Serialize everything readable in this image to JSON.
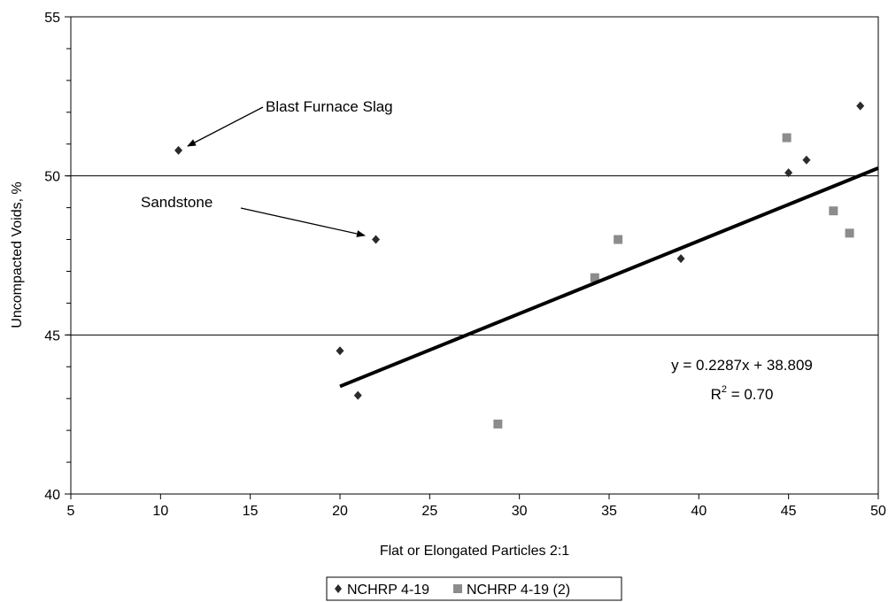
{
  "chart_data": {
    "type": "scatter",
    "xlabel": "Flat or Elongated Particles 2:1",
    "ylabel": "Uncompacted Voids, %",
    "xlim": [
      5,
      50
    ],
    "ylim": [
      40,
      55
    ],
    "x_ticks": [
      "5",
      "10",
      "15",
      "20",
      "25",
      "30",
      "35",
      "40",
      "45",
      "50"
    ],
    "y_ticks": [
      "40",
      "45",
      "50",
      "55"
    ],
    "gridlines_y": [
      45,
      50
    ],
    "series": [
      {
        "name": "NCHRP 4-19",
        "marker": "diamond",
        "color": "#2b2b2b",
        "points": [
          {
            "x": 11,
            "y": 50.8
          },
          {
            "x": 20,
            "y": 44.5
          },
          {
            "x": 21,
            "y": 43.1
          },
          {
            "x": 22,
            "y": 48.0
          },
          {
            "x": 39,
            "y": 47.4
          },
          {
            "x": 45,
            "y": 50.1
          },
          {
            "x": 46,
            "y": 50.5
          },
          {
            "x": 49,
            "y": 52.2
          }
        ]
      },
      {
        "name": "NCHRP 4-19 (2)",
        "marker": "square",
        "color": "#8c8c8c",
        "points": [
          {
            "x": 28.8,
            "y": 42.2
          },
          {
            "x": 34.2,
            "y": 46.8
          },
          {
            "x": 35.5,
            "y": 48.0
          },
          {
            "x": 44.9,
            "y": 51.2
          },
          {
            "x": 47.5,
            "y": 48.9
          },
          {
            "x": 48.4,
            "y": 48.2
          }
        ]
      }
    ],
    "trendline": {
      "slope": 0.2287,
      "intercept": 38.809,
      "x_range": [
        20,
        50
      ],
      "equation_text": "y = 0.2287x + 38.809",
      "r2_prefix": "R",
      "r2_sup": "2",
      "r2_suffix": " = 0.70"
    },
    "annotations": [
      {
        "text": "Blast Furnace Slag",
        "points_to": {
          "x": 11,
          "y": 50.8
        }
      },
      {
        "text": "Sandstone",
        "points_to": {
          "x": 22,
          "y": 48.0
        }
      }
    ],
    "legend": {
      "position": "bottom-center"
    }
  }
}
